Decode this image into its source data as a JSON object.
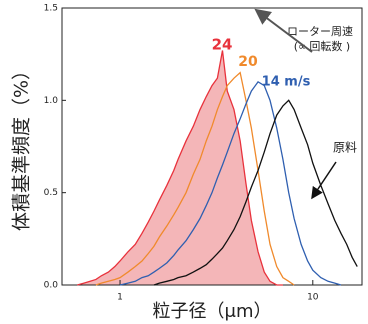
{
  "chart_data": {
    "type": "line",
    "x_label": "粒子径（μm）",
    "y_label": "体積基準頻度（%）",
    "annotations": [
      "ローター周速",
      "(∝ 回転数 )"
    ],
    "log_x": true,
    "xlim": [
      0.5,
      18
    ],
    "xticks": [
      1,
      10
    ],
    "ylim": [
      0,
      1.5
    ],
    "yticks": [
      {
        "value": 0,
        "label": "0.0"
      },
      {
        "value": 0.5,
        "label": "0.5"
      },
      {
        "value": 1,
        "label": "1.0"
      },
      {
        "value": 1.5,
        "label": "1.5"
      }
    ],
    "x": [
      0.6,
      0.65,
      0.7,
      0.75,
      0.8,
      0.87,
      0.94,
      1.0,
      1.1,
      1.2,
      1.3,
      1.4,
      1.5,
      1.6,
      1.75,
      1.9,
      2.0,
      2.2,
      2.4,
      2.6,
      2.8,
      3.0,
      3.2,
      3.4,
      3.6,
      3.9,
      4.2,
      4.5,
      4.8,
      5.2,
      5.6,
      6.0,
      6.5,
      7.0,
      7.5,
      8.0,
      8.7,
      9.4,
      10,
      11,
      12,
      13,
      14,
      15,
      16,
      17
    ],
    "series": [
      {
        "name": "24",
        "color": "#e8323c",
        "fill": "#f4b6b8",
        "values": [
          0,
          0.01,
          0.02,
          0.03,
          0.05,
          0.07,
          0.1,
          0.13,
          0.18,
          0.22,
          0.28,
          0.34,
          0.4,
          0.46,
          0.54,
          0.62,
          0.68,
          0.78,
          0.86,
          0.95,
          1.02,
          1.08,
          1.12,
          1.27,
          1.05,
          0.95,
          0.78,
          0.55,
          0.35,
          0.18,
          0.07,
          0.02,
          0,
          0,
          null,
          null,
          null,
          null,
          null,
          null,
          null,
          null,
          null,
          null,
          null,
          null
        ]
      },
      {
        "name": "20",
        "color": "#f08a2c",
        "values": [
          null,
          null,
          null,
          0,
          0.01,
          0.02,
          0.03,
          0.04,
          0.07,
          0.1,
          0.13,
          0.17,
          0.21,
          0.26,
          0.32,
          0.38,
          0.42,
          0.5,
          0.6,
          0.68,
          0.78,
          0.86,
          0.95,
          1.02,
          1.08,
          1.12,
          1.15,
          1.0,
          0.85,
          0.62,
          0.4,
          0.22,
          0.1,
          0.04,
          0.02,
          0,
          null,
          null,
          null,
          null,
          null,
          null,
          null,
          null,
          null,
          null
        ]
      },
      {
        "name": "14 m/s",
        "color": "#2f5fb0",
        "values": [
          null,
          null,
          null,
          null,
          null,
          null,
          null,
          0,
          0.01,
          0.02,
          0.04,
          0.05,
          0.07,
          0.09,
          0.12,
          0.16,
          0.19,
          0.24,
          0.3,
          0.36,
          0.43,
          0.5,
          0.58,
          0.65,
          0.72,
          0.82,
          0.9,
          0.98,
          1.05,
          1.1,
          1.08,
          1.0,
          0.85,
          0.68,
          0.5,
          0.36,
          0.22,
          0.13,
          0.08,
          0.04,
          0.02,
          0.01,
          0,
          null,
          null,
          null
        ]
      },
      {
        "name": "原料",
        "color": "#111111",
        "values": [
          null,
          null,
          null,
          null,
          null,
          null,
          null,
          null,
          null,
          null,
          null,
          null,
          0,
          0.01,
          0.02,
          0.03,
          0.04,
          0.05,
          0.07,
          0.09,
          0.11,
          0.14,
          0.17,
          0.2,
          0.24,
          0.3,
          0.37,
          0.45,
          0.53,
          0.62,
          0.72,
          0.82,
          0.92,
          0.97,
          1.0,
          0.95,
          0.85,
          0.76,
          0.66,
          0.54,
          0.44,
          0.35,
          0.28,
          0.22,
          0.15,
          0.1
        ]
      }
    ]
  }
}
